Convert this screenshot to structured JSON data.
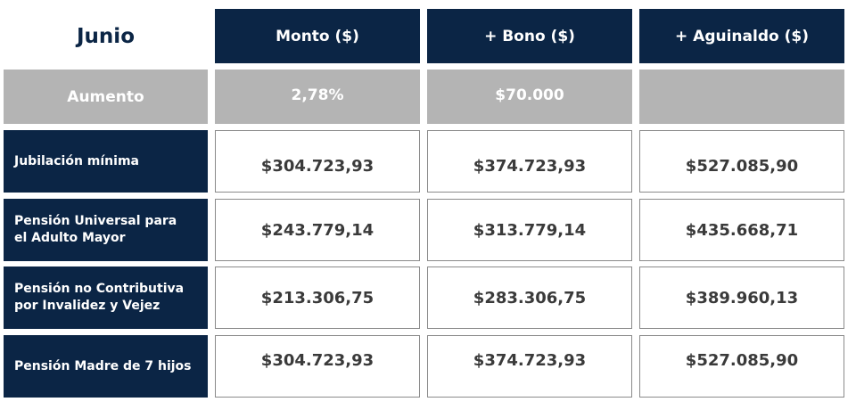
{
  "header": {
    "month": "Junio",
    "columns": [
      "Monto ($)",
      "+ Bono ($)",
      "+ Aguinaldo ($)"
    ]
  },
  "increase_row": {
    "label": "Aumento",
    "values": [
      "2,78%",
      "$70.000",
      ""
    ]
  },
  "rows": [
    {
      "label_lines": [
        "Jubilación mínima"
      ],
      "values": [
        "$304.723,93",
        "$374.723,93",
        "$527.085,90"
      ]
    },
    {
      "label_lines": [
        "Pensión Universal para",
        "el Adulto Mayor"
      ],
      "values": [
        "$243.779,14",
        "$313.779,14",
        "$435.668,71"
      ]
    },
    {
      "label_lines": [
        "Pensión no Contributiva",
        "por Invalidez y Vejez"
      ],
      "values": [
        "$213.306,75",
        "$283.306,75",
        "$389.960,13"
      ]
    },
    {
      "label_lines": [
        "Pensión Madre de 7 hijos"
      ],
      "values": [
        "$304.723,93",
        "$374.723,93",
        "$527.085,90"
      ]
    }
  ],
  "colors": {
    "navy": "#0b2545",
    "gray": "#b4b4b4",
    "value_text": "#3a3a3a",
    "border": "#8a8a8a"
  }
}
